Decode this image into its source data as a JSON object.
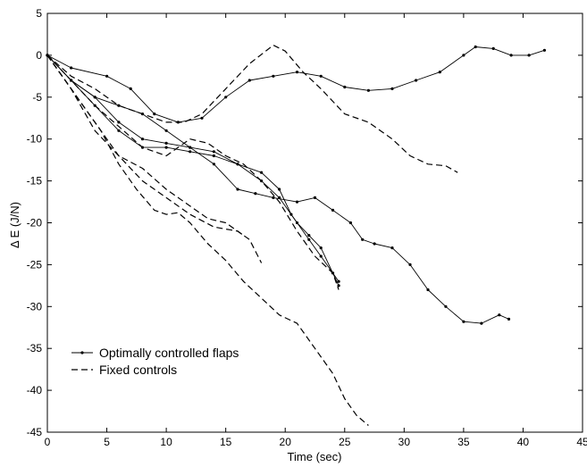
{
  "chart_data": {
    "type": "line",
    "title": "",
    "xlabel": "Time (sec)",
    "ylabel": "Δ E (J/N)",
    "xlim": [
      0,
      45
    ],
    "ylim": [
      -45,
      5
    ],
    "xticks": [
      0,
      5,
      10,
      15,
      20,
      25,
      30,
      35,
      40,
      45
    ],
    "yticks": [
      5,
      0,
      -5,
      -10,
      -15,
      -20,
      -25,
      -30,
      -35,
      -40,
      -45
    ],
    "grid": false,
    "legend_position": "bottom-left",
    "legend": [
      {
        "label": "Optimally controlled flaps",
        "style": "solid-dots"
      },
      {
        "label": "Fixed controls",
        "style": "dashed"
      }
    ],
    "series": [
      {
        "style": "solid-dots",
        "points": [
          [
            0,
            0
          ],
          [
            2,
            -1.5
          ],
          [
            5,
            -2.5
          ],
          [
            7,
            -4
          ],
          [
            9,
            -7
          ],
          [
            11,
            -8
          ],
          [
            13,
            -7.5
          ],
          [
            15,
            -5
          ],
          [
            17,
            -3
          ],
          [
            19,
            -2.5
          ],
          [
            21,
            -2
          ],
          [
            23,
            -2.5
          ],
          [
            25,
            -3.8
          ],
          [
            27,
            -4.2
          ],
          [
            29,
            -4
          ],
          [
            31,
            -3
          ],
          [
            33,
            -2
          ],
          [
            35,
            0
          ],
          [
            36,
            1
          ],
          [
            37.5,
            0.8
          ],
          [
            39,
            0
          ],
          [
            40.5,
            0
          ],
          [
            41.8,
            0.6
          ]
        ]
      },
      {
        "style": "solid-dots",
        "points": [
          [
            0,
            0
          ],
          [
            2,
            -3
          ],
          [
            4,
            -5
          ],
          [
            6,
            -6
          ],
          [
            8,
            -7
          ],
          [
            10,
            -9
          ],
          [
            12,
            -11
          ],
          [
            14,
            -13
          ],
          [
            16,
            -16
          ],
          [
            17.5,
            -16.5
          ],
          [
            19,
            -17
          ],
          [
            21,
            -17.5
          ],
          [
            22.5,
            -17
          ],
          [
            24,
            -18.5
          ],
          [
            25.5,
            -20
          ],
          [
            26.5,
            -22
          ],
          [
            27.5,
            -22.5
          ],
          [
            29,
            -23
          ],
          [
            30.5,
            -25
          ],
          [
            32,
            -28
          ],
          [
            33.5,
            -30
          ],
          [
            35,
            -31.8
          ],
          [
            36.5,
            -32
          ],
          [
            38,
            -31
          ],
          [
            38.8,
            -31.5
          ]
        ]
      },
      {
        "style": "solid-dots",
        "points": [
          [
            0,
            0
          ],
          [
            2,
            -3
          ],
          [
            4,
            -6
          ],
          [
            6,
            -9
          ],
          [
            8,
            -11
          ],
          [
            10,
            -11
          ],
          [
            12,
            -11.5
          ],
          [
            14,
            -12
          ],
          [
            16,
            -13
          ],
          [
            18,
            -15
          ],
          [
            19.5,
            -17
          ],
          [
            21,
            -20
          ],
          [
            22,
            -21.5
          ],
          [
            23,
            -23
          ],
          [
            24,
            -26
          ],
          [
            24.5,
            -27.5
          ]
        ]
      },
      {
        "style": "solid-dots",
        "points": [
          [
            0,
            0
          ],
          [
            2,
            -3
          ],
          [
            4,
            -5
          ],
          [
            6,
            -8
          ],
          [
            8,
            -10
          ],
          [
            10,
            -10.5
          ],
          [
            12,
            -11
          ],
          [
            14,
            -11.5
          ],
          [
            16,
            -13
          ],
          [
            18,
            -14
          ],
          [
            19.5,
            -16
          ],
          [
            20.5,
            -19
          ],
          [
            22,
            -22
          ],
          [
            23,
            -24
          ],
          [
            24,
            -26
          ],
          [
            24.5,
            -27
          ]
        ]
      },
      {
        "style": "dashed",
        "points": [
          [
            0,
            0
          ],
          [
            2,
            -2.5
          ],
          [
            4,
            -4
          ],
          [
            6,
            -6
          ],
          [
            8,
            -7
          ],
          [
            10,
            -8
          ],
          [
            11.5,
            -8
          ],
          [
            13,
            -7
          ],
          [
            15,
            -4
          ],
          [
            17,
            -1
          ],
          [
            19,
            1.2
          ],
          [
            20,
            0.5
          ],
          [
            21.5,
            -2
          ],
          [
            23,
            -4
          ],
          [
            25,
            -7
          ],
          [
            27,
            -8
          ],
          [
            29,
            -10
          ],
          [
            30.5,
            -12
          ],
          [
            32,
            -13
          ],
          [
            33.5,
            -13.2
          ],
          [
            34.5,
            -14
          ]
        ]
      },
      {
        "style": "dashed",
        "points": [
          [
            0,
            0
          ],
          [
            2,
            -3
          ],
          [
            4,
            -6
          ],
          [
            6,
            -8.5
          ],
          [
            8,
            -11
          ],
          [
            10,
            -12
          ],
          [
            12,
            -10
          ],
          [
            13.5,
            -10.5
          ],
          [
            15,
            -12
          ],
          [
            16.5,
            -13
          ],
          [
            18,
            -15
          ],
          [
            19.5,
            -17.5
          ],
          [
            21,
            -21
          ],
          [
            22.5,
            -24
          ],
          [
            24,
            -26
          ],
          [
            24.5,
            -28
          ]
        ]
      },
      {
        "style": "dashed",
        "points": [
          [
            0,
            0
          ],
          [
            2,
            -4
          ],
          [
            4,
            -8
          ],
          [
            6,
            -12
          ],
          [
            8,
            -15
          ],
          [
            10,
            -17
          ],
          [
            12,
            -19
          ],
          [
            14,
            -20.5
          ],
          [
            16,
            -21
          ],
          [
            17,
            -22
          ],
          [
            18,
            -24.8
          ]
        ]
      },
      {
        "style": "dashed",
        "points": [
          [
            0,
            0
          ],
          [
            1.5,
            -3
          ],
          [
            3,
            -6
          ],
          [
            4.5,
            -9
          ],
          [
            6,
            -13
          ],
          [
            7.5,
            -16
          ],
          [
            9,
            -18.5
          ],
          [
            10,
            -19
          ],
          [
            11,
            -18.8
          ],
          [
            12,
            -20
          ],
          [
            13.5,
            -22.5
          ],
          [
            15,
            -24.5
          ],
          [
            16.5,
            -27
          ],
          [
            18,
            -29
          ],
          [
            19.5,
            -31
          ],
          [
            21,
            -32
          ],
          [
            22.5,
            -35
          ],
          [
            24,
            -38
          ],
          [
            25,
            -41
          ],
          [
            26,
            -43
          ],
          [
            27,
            -44.2
          ]
        ]
      },
      {
        "style": "dashed",
        "points": [
          [
            0,
            0
          ],
          [
            2,
            -4
          ],
          [
            4,
            -9
          ],
          [
            6,
            -12
          ],
          [
            8,
            -13.5
          ],
          [
            10,
            -16
          ],
          [
            12,
            -18
          ],
          [
            13.5,
            -19.5
          ],
          [
            15,
            -20
          ],
          [
            16.5,
            -21.5
          ]
        ]
      }
    ]
  }
}
